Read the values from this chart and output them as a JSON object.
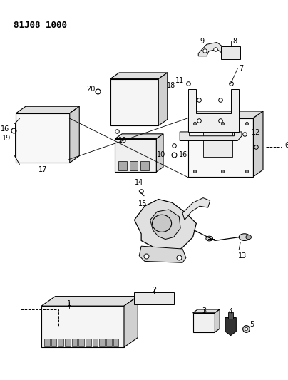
{
  "title": "81J08 1000",
  "bg_color": "#ffffff",
  "line_color": "#000000",
  "fig_width": 4.04,
  "fig_height": 5.33,
  "dpi": 100
}
